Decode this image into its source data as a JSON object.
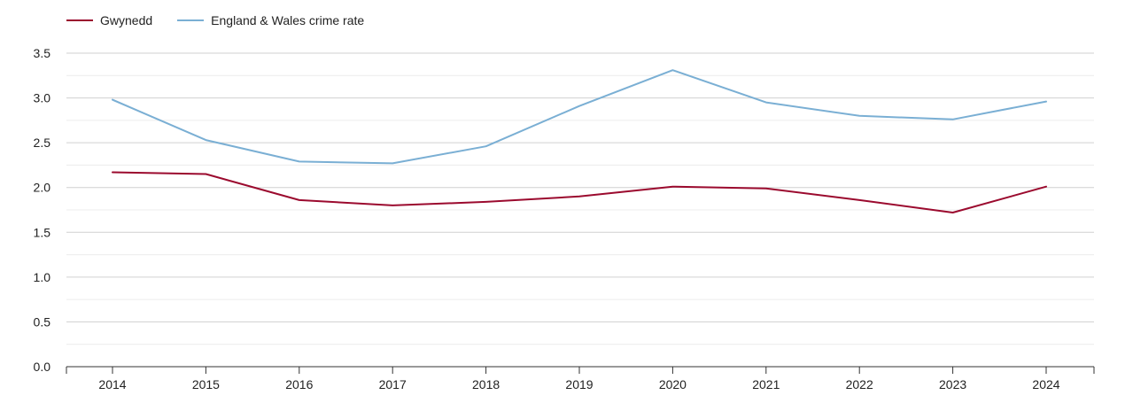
{
  "chart_data": {
    "type": "line",
    "title": "",
    "xlabel": "",
    "ylabel": "",
    "categories": [
      "2014",
      "2015",
      "2016",
      "2017",
      "2018",
      "2019",
      "2020",
      "2021",
      "2022",
      "2023",
      "2024"
    ],
    "ylim": [
      0,
      3.5
    ],
    "yticks": [
      "0.0",
      "0.5",
      "1.0",
      "1.5",
      "2.0",
      "2.5",
      "3.0",
      "3.5"
    ],
    "grid": true,
    "legend_position": "top-left",
    "series": [
      {
        "name": "Gwynedd",
        "color": "#9b0a2e",
        "values": [
          2.17,
          2.15,
          1.86,
          1.8,
          1.84,
          1.9,
          2.01,
          1.99,
          1.86,
          1.72,
          2.01
        ]
      },
      {
        "name": "England & Wales crime rate",
        "color": "#7aafd4",
        "values": [
          2.98,
          2.53,
          2.29,
          2.27,
          2.46,
          2.91,
          3.31,
          2.95,
          2.8,
          2.76,
          2.96
        ]
      }
    ]
  }
}
